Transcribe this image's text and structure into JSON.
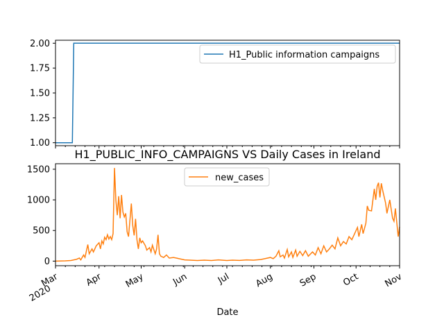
{
  "chart_data": [
    {
      "type": "line",
      "title": "",
      "xlabel": "",
      "ylabel": "",
      "ylim": [
        0.97,
        2.03
      ],
      "yticks": [
        "1.00",
        "1.25",
        "1.50",
        "1.75",
        "2.00"
      ],
      "legend": "upper right",
      "series": [
        {
          "name": "H1_Public information campaigns",
          "color": "#1f77b4",
          "points": [
            [
              "2020-03-01",
              1
            ],
            [
              "2020-03-13",
              1
            ],
            [
              "2020-03-14",
              2
            ],
            [
              "2020-11-01",
              2
            ]
          ]
        }
      ]
    },
    {
      "type": "line",
      "title": "H1_PUBLIC_INFO_CAMPAIGNS VS Daily Cases in Ireland",
      "xlabel": "Date",
      "ylabel": "",
      "ylim": [
        -75,
        1590
      ],
      "yticks": [
        "0",
        "500",
        "1000",
        "1500"
      ],
      "x_range": [
        "2020-03-01",
        "2020-11-01"
      ],
      "xticks": [
        {
          "date": "2020-03-01",
          "label": "Mar",
          "sub": "2020"
        },
        {
          "date": "2020-04-01",
          "label": "Apr"
        },
        {
          "date": "2020-05-01",
          "label": "May"
        },
        {
          "date": "2020-06-01",
          "label": "Jun"
        },
        {
          "date": "2020-07-01",
          "label": "Jul"
        },
        {
          "date": "2020-08-01",
          "label": "Aug"
        },
        {
          "date": "2020-09-01",
          "label": "Sep"
        },
        {
          "date": "2020-10-01",
          "label": "Oct"
        },
        {
          "date": "2020-11-01",
          "label": "Nov"
        }
      ],
      "legend": "upper center",
      "series": [
        {
          "name": "new_cases",
          "color": "#ff7f0e",
          "points": [
            [
              "2020-03-01",
              0
            ],
            [
              "2020-03-08",
              5
            ],
            [
              "2020-03-12",
              10
            ],
            [
              "2020-03-14",
              20
            ],
            [
              "2020-03-16",
              30
            ],
            [
              "2020-03-18",
              50
            ],
            [
              "2020-03-19",
              20
            ],
            [
              "2020-03-21",
              100
            ],
            [
              "2020-03-22",
              60
            ],
            [
              "2020-03-24",
              270
            ],
            [
              "2020-03-25",
              120
            ],
            [
              "2020-03-27",
              200
            ],
            [
              "2020-03-28",
              150
            ],
            [
              "2020-03-30",
              250
            ],
            [
              "2020-04-01",
              300
            ],
            [
              "2020-04-02",
              200
            ],
            [
              "2020-04-03",
              330
            ],
            [
              "2020-04-04",
              280
            ],
            [
              "2020-04-05",
              390
            ],
            [
              "2020-04-06",
              350
            ],
            [
              "2020-04-07",
              430
            ],
            [
              "2020-04-08",
              360
            ],
            [
              "2020-04-09",
              400
            ],
            [
              "2020-04-10",
              350
            ],
            [
              "2020-04-11",
              450
            ],
            [
              "2020-04-12",
              1520
            ],
            [
              "2020-04-13",
              990
            ],
            [
              "2020-04-14",
              750
            ],
            [
              "2020-04-15",
              1060
            ],
            [
              "2020-04-16",
              700
            ],
            [
              "2020-04-17",
              1080
            ],
            [
              "2020-04-18",
              800
            ],
            [
              "2020-04-19",
              720
            ],
            [
              "2020-04-20",
              780
            ],
            [
              "2020-04-21",
              480
            ],
            [
              "2020-04-22",
              400
            ],
            [
              "2020-04-24",
              940
            ],
            [
              "2020-04-25",
              580
            ],
            [
              "2020-04-26",
              420
            ],
            [
              "2020-04-27",
              690
            ],
            [
              "2020-04-28",
              350
            ],
            [
              "2020-04-29",
              200
            ],
            [
              "2020-04-30",
              380
            ],
            [
              "2020-05-01",
              300
            ],
            [
              "2020-05-02",
              330
            ],
            [
              "2020-05-04",
              250
            ],
            [
              "2020-05-05",
              180
            ],
            [
              "2020-05-07",
              220
            ],
            [
              "2020-05-08",
              150
            ],
            [
              "2020-05-09",
              260
            ],
            [
              "2020-05-11",
              120
            ],
            [
              "2020-05-12",
              200
            ],
            [
              "2020-05-13",
              430
            ],
            [
              "2020-05-14",
              120
            ],
            [
              "2020-05-15",
              80
            ],
            [
              "2020-05-17",
              60
            ],
            [
              "2020-05-19",
              100
            ],
            [
              "2020-05-21",
              50
            ],
            [
              "2020-05-24",
              60
            ],
            [
              "2020-05-28",
              40
            ],
            [
              "2020-06-01",
              20
            ],
            [
              "2020-06-05",
              15
            ],
            [
              "2020-06-10",
              10
            ],
            [
              "2020-06-15",
              15
            ],
            [
              "2020-06-20",
              10
            ],
            [
              "2020-06-25",
              20
            ],
            [
              "2020-07-01",
              10
            ],
            [
              "2020-07-05",
              15
            ],
            [
              "2020-07-10",
              12
            ],
            [
              "2020-07-15",
              20
            ],
            [
              "2020-07-20",
              15
            ],
            [
              "2020-07-25",
              25
            ],
            [
              "2020-07-28",
              40
            ],
            [
              "2020-08-01",
              60
            ],
            [
              "2020-08-03",
              40
            ],
            [
              "2020-08-05",
              80
            ],
            [
              "2020-08-07",
              170
            ],
            [
              "2020-08-08",
              70
            ],
            [
              "2020-08-10",
              100
            ],
            [
              "2020-08-11",
              50
            ],
            [
              "2020-08-13",
              190
            ],
            [
              "2020-08-14",
              70
            ],
            [
              "2020-08-16",
              150
            ],
            [
              "2020-08-17",
              60
            ],
            [
              "2020-08-19",
              180
            ],
            [
              "2020-08-20",
              80
            ],
            [
              "2020-08-22",
              160
            ],
            [
              "2020-08-24",
              90
            ],
            [
              "2020-08-26",
              170
            ],
            [
              "2020-08-28",
              80
            ],
            [
              "2020-08-31",
              150
            ],
            [
              "2020-09-02",
              100
            ],
            [
              "2020-09-04",
              220
            ],
            [
              "2020-09-06",
              120
            ],
            [
              "2020-09-08",
              250
            ],
            [
              "2020-09-10",
              150
            ],
            [
              "2020-09-12",
              200
            ],
            [
              "2020-09-14",
              260
            ],
            [
              "2020-09-16",
              200
            ],
            [
              "2020-09-18",
              380
            ],
            [
              "2020-09-20",
              250
            ],
            [
              "2020-09-22",
              320
            ],
            [
              "2020-09-24",
              280
            ],
            [
              "2020-09-26",
              400
            ],
            [
              "2020-09-28",
              350
            ],
            [
              "2020-09-30",
              450
            ],
            [
              "2020-10-02",
              550
            ],
            [
              "2020-10-03",
              400
            ],
            [
              "2020-10-05",
              600
            ],
            [
              "2020-10-06",
              450
            ],
            [
              "2020-10-08",
              620
            ],
            [
              "2020-10-09",
              900
            ],
            [
              "2020-10-10",
              830
            ],
            [
              "2020-10-12",
              820
            ],
            [
              "2020-10-14",
              1180
            ],
            [
              "2020-10-15",
              1000
            ],
            [
              "2020-10-16",
              1220
            ],
            [
              "2020-10-17",
              1280
            ],
            [
              "2020-10-18",
              1040
            ],
            [
              "2020-10-19",
              1270
            ],
            [
              "2020-10-20",
              1150
            ],
            [
              "2020-10-22",
              950
            ],
            [
              "2020-10-23",
              780
            ],
            [
              "2020-10-25",
              1000
            ],
            [
              "2020-10-27",
              700
            ],
            [
              "2020-10-28",
              650
            ],
            [
              "2020-10-29",
              860
            ],
            [
              "2020-10-31",
              400
            ],
            [
              "2020-11-01",
              560
            ]
          ]
        }
      ]
    }
  ]
}
